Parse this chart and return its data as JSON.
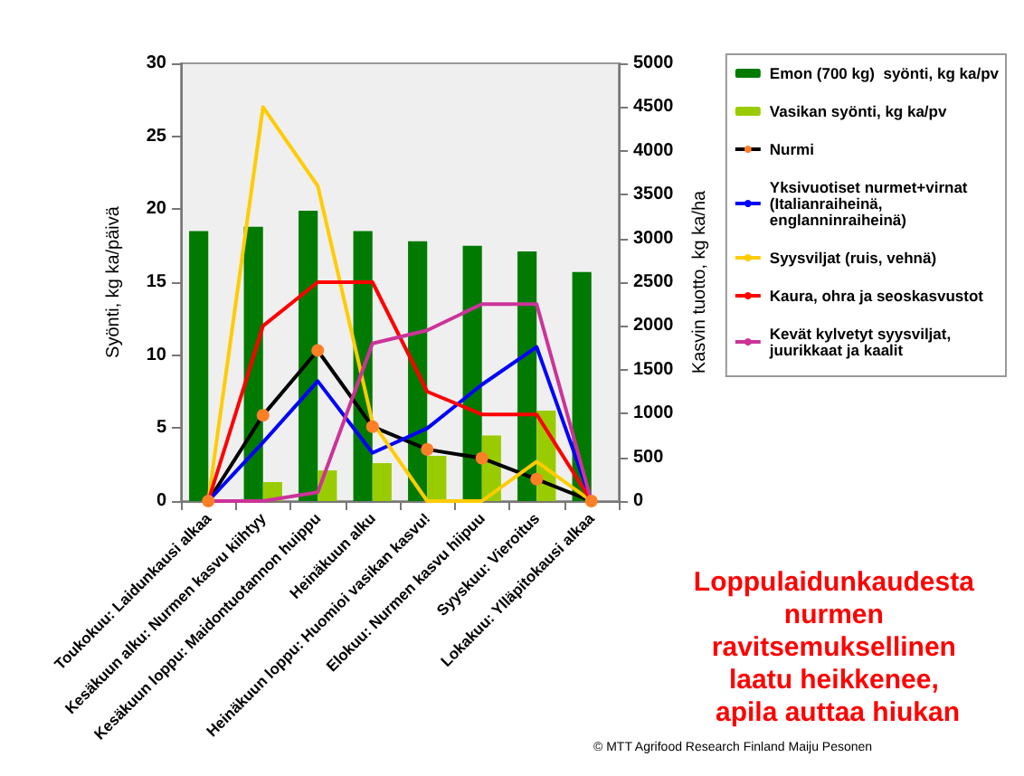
{
  "chart_data": {
    "type": "bar",
    "ylabel": "Syönti, kg ka/päivä",
    "y2label": "Kasvin tuotto, kg ka/ha",
    "categories": [
      "Toukokuu: Laidunkausi alkaa",
      "Kesäkuun alku: Nurmen kasvu kiihtyy",
      "Kesäkuun loppu: Maidontuotannon huippu",
      "Heinäkuun alku",
      "Heinäkuun loppu: Huomioi vasikan kasvu!",
      "Elokuu: Nurmen kasvu hiipuu",
      "Syyskuu: Vieroitus",
      "Lokakuu: Ylläpitokausi alkaa"
    ],
    "series": [
      {
        "name": "Emon (700 kg)  syönti, kg ka/pv",
        "color": "#007a00",
        "values": [
          18.5,
          18.8,
          19.9,
          18.5,
          17.8,
          17.5,
          17.1,
          15.7
        ]
      },
      {
        "name": "Vasikan syönti, kg ka/pv",
        "color": "#99cc00",
        "values": [
          0,
          1.3,
          2.1,
          2.6,
          3.1,
          4.5,
          6.2,
          0
        ]
      },
      {
        "name": "Nurmi",
        "type": "line",
        "axis": "y2",
        "color": "#000000",
        "marker": "circle",
        "values": [
          0,
          980,
          1720,
          850,
          590,
          490,
          250,
          0
        ]
      },
      {
        "name": "Yksivuotiset nurmet+virnat (Italianraiheinä, englanninraiheinä)",
        "type": "line",
        "axis": "y2",
        "color": "#0000ff",
        "marker": "none",
        "values": [
          0,
          670,
          1370,
          550,
          830,
          1330,
          1760,
          0
        ]
      },
      {
        "name": "Syysviljat (ruis, vehnä)",
        "type": "line",
        "axis": "y2",
        "color": "#ffcc00",
        "marker": "none",
        "values": [
          0,
          4500,
          3600,
          900,
          0,
          0,
          450,
          0
        ]
      },
      {
        "name": "Kaura, ohra ja seoskasvustot",
        "type": "line",
        "axis": "y2",
        "color": "#ff0000",
        "marker": "none",
        "values": [
          0,
          2000,
          2500,
          2500,
          1250,
          990,
          990,
          0
        ]
      },
      {
        "name": "Kevät kylvetyt syysviljat, juurikkaat ja kaalit",
        "type": "line",
        "axis": "y2",
        "color": "#cc3399",
        "marker": "none",
        "values": [
          0,
          0,
          100,
          1800,
          1950,
          2250,
          2250,
          0
        ]
      }
    ],
    "ylim": [
      0,
      30
    ],
    "yticks": [
      0,
      5,
      10,
      15,
      20,
      25,
      30
    ],
    "y2lim": [
      0,
      5000
    ],
    "y2ticks": [
      0,
      500,
      1000,
      1500,
      2000,
      2500,
      3000,
      3500,
      4000,
      4500,
      5000
    ],
    "grid": false,
    "legend": "right",
    "annotations": [
      "Loppulaidunkaudesta nurmen ravitsemuksellinen laatu heikkenee, apila auttaa hiukan",
      "© MTT Agrifood Research Finland Maiju Pesonen"
    ]
  }
}
